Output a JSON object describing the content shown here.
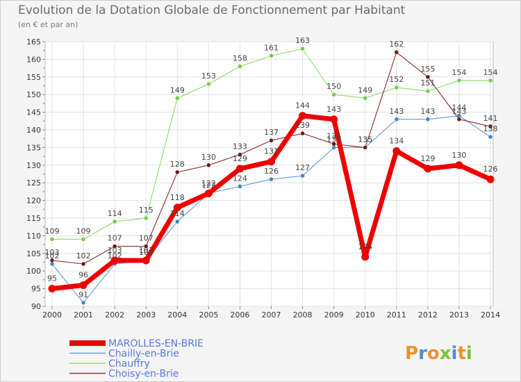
{
  "chart_data": {
    "type": "line",
    "title": "Evolution de la Dotation Globale de Fonctionnement par Habitant",
    "subtitle": "(en € et par an)",
    "xlabel": "",
    "ylabel": "",
    "x": [
      "2000",
      "2001",
      "2002",
      "2003",
      "2004",
      "2005",
      "2006",
      "2007",
      "2008",
      "2009",
      "2010",
      "2011",
      "2012",
      "2013",
      "2014"
    ],
    "ylim": [
      90,
      165
    ],
    "yticks": [
      90,
      95,
      100,
      105,
      110,
      115,
      120,
      125,
      130,
      135,
      140,
      145,
      150,
      155,
      160,
      165
    ],
    "legend_position": "bottom-left",
    "series": [
      {
        "name": "Chailly-en-Brie",
        "color": "#6ca0d8",
        "marker": "#3a86c8",
        "width": 1.2,
        "values": [
          102,
          91,
          102,
          103,
          114,
          122,
          124,
          126,
          127,
          135,
          135,
          143,
          143,
          144,
          138
        ]
      },
      {
        "name": "Chauffry",
        "color": "#99dd77",
        "marker": "#77cc44",
        "width": 1.2,
        "values": [
          109,
          109,
          114,
          115,
          149,
          153,
          158,
          161,
          163,
          150,
          149,
          152,
          151,
          154,
          154
        ]
      },
      {
        "name": "Choisy-en-Brie",
        "color": "#8b3a3a",
        "marker": "#6b1a1a",
        "width": 1.2,
        "values": [
          103,
          102,
          107,
          107,
          128,
          130,
          133,
          137,
          139,
          136,
          135,
          162,
          155,
          143,
          141
        ]
      },
      {
        "name": "MAROLLES-EN-BRIE",
        "color": "#ee0000",
        "marker": "#ee0000",
        "width": 7,
        "values": [
          95,
          96,
          103,
          103,
          118,
          122,
          129,
          131,
          144,
          143,
          104,
          134,
          129,
          130,
          126
        ]
      }
    ],
    "legend_order": [
      "MAROLLES-EN-BRIE",
      "Chailly-en-Brie",
      "Chauffry",
      "Choisy-en-Brie"
    ]
  },
  "logo": {
    "text": "Proxiti",
    "colors": [
      "#e8942a",
      "#4a90d0",
      "#e8942a",
      "#7cc242",
      "#4a90d0",
      "#e8942a",
      "#7cc242"
    ]
  }
}
